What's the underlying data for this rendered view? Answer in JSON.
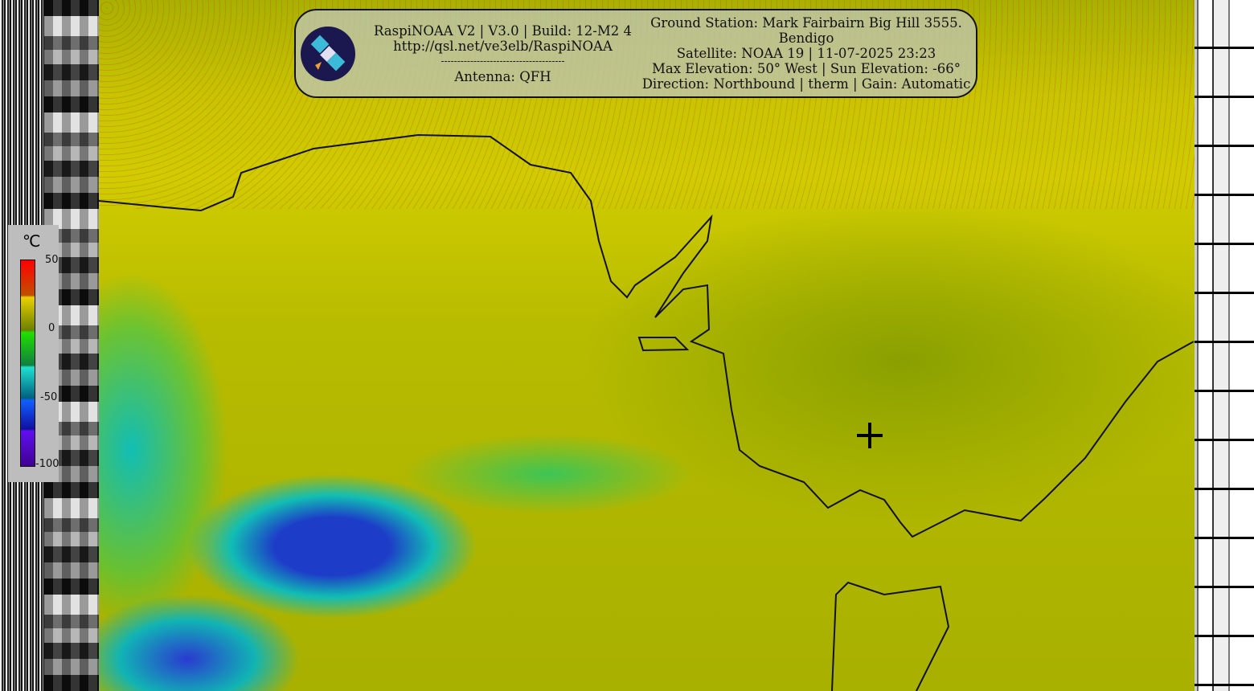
{
  "header": {
    "software": "RaspiNOAA V2 | V3.0 | Build: 12-M2 4",
    "url": "http://qsl.net/ve3elb/RaspiNOAA",
    "divider": "--------------------------------------",
    "antenna": "Antenna: QFH",
    "ground_station": "Ground Station: Mark Fairbairn Big Hill 3555.",
    "location": "Bendigo",
    "satellite": "Satellite: NOAA 19 | 11-07-2025 23:23",
    "elevation": "Max Elevation: 50° West | Sun Elevation: -66°",
    "direction": "Direction: Northbound | therm | Gain: Automatic"
  },
  "legend": {
    "unit": "℃",
    "ticks": [
      "50",
      "0",
      "-50",
      "-100"
    ],
    "colors": [
      "#ff0000",
      "#e8d000",
      "#20e000",
      "#20e0d0",
      "#1060ff",
      "#6010f0"
    ]
  },
  "icons": {
    "logo": "satellite-icon",
    "marker": "crosshair-icon"
  }
}
